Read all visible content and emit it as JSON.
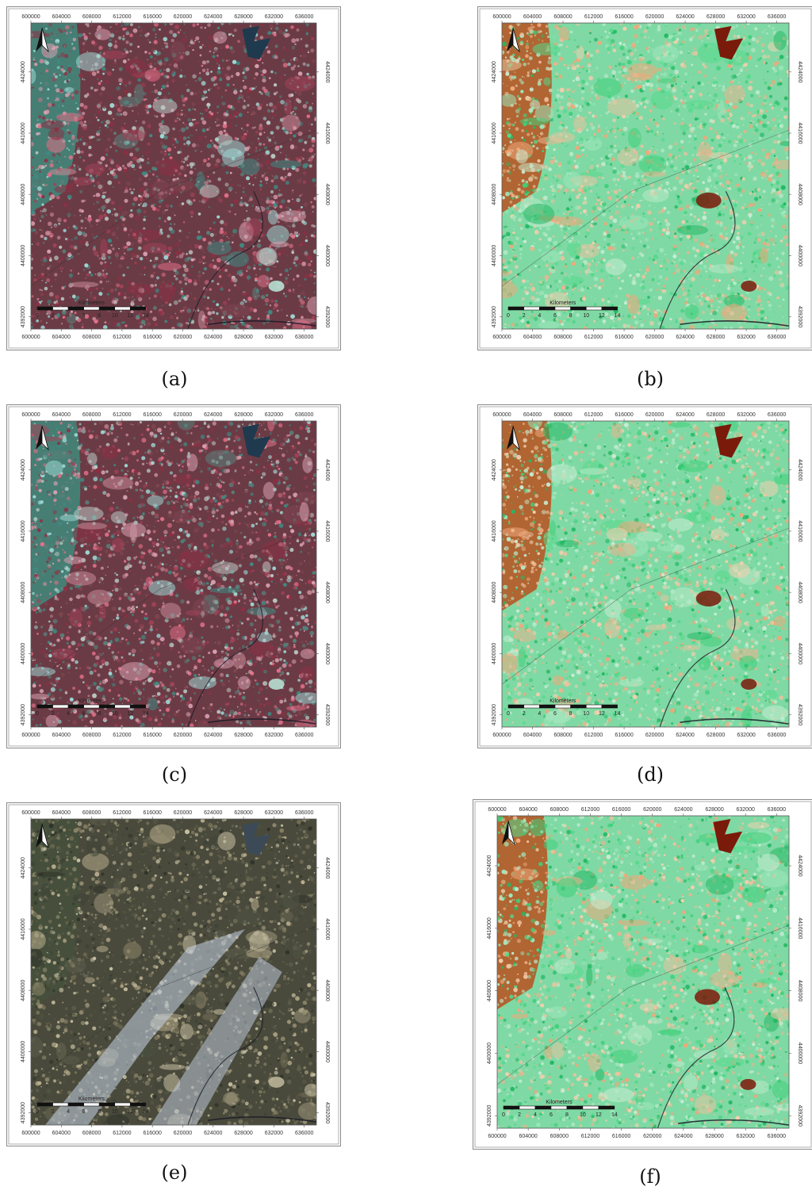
{
  "figure": {
    "panels": [
      {
        "id": "a",
        "caption": "(a)",
        "style": "false-color"
      },
      {
        "id": "b",
        "caption": "(b)",
        "style": "index"
      },
      {
        "id": "c",
        "caption": "(c)",
        "style": "false-color"
      },
      {
        "id": "d",
        "caption": "(d)",
        "style": "index"
      },
      {
        "id": "e",
        "caption": "(e)",
        "style": "true-color"
      },
      {
        "id": "f",
        "caption": "(f)",
        "style": "index"
      }
    ],
    "x_ticks": [
      "600000",
      "604000",
      "608000",
      "612000",
      "616000",
      "620000",
      "624000",
      "628000",
      "632000",
      "636000"
    ],
    "y_ticks": [
      "4424000",
      "4416000",
      "4408000",
      "4400000",
      "4392000"
    ],
    "scale_bar": {
      "title": "Kilometers",
      "labels": [
        "0",
        "2",
        "4",
        "6",
        "8",
        "10",
        "12",
        "14"
      ]
    },
    "north_arrow": "north-arrow-icon",
    "colors": {
      "false_color_base": "#6b3b45",
      "index_base": "#7fd9a4",
      "true_color_base": "#4a4a3c",
      "water": "#1f3a4e",
      "urban_index": "#7a1a0a"
    }
  }
}
